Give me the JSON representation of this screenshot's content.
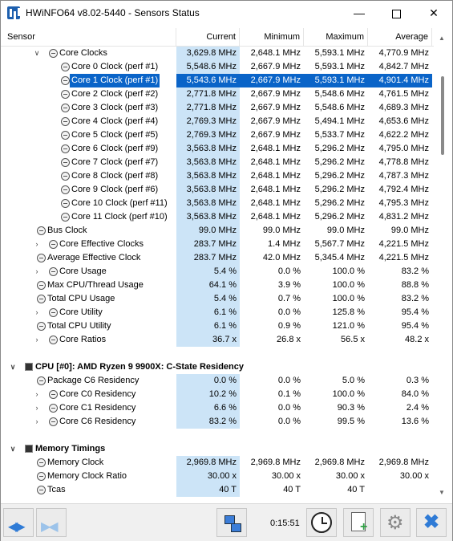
{
  "window": {
    "title": "HWiNFO64 v8.02-5440 - Sensors Status"
  },
  "columns": {
    "sensor": "Sensor",
    "current": "Current",
    "minimum": "Minimum",
    "maximum": "Maximum",
    "average": "Average"
  },
  "rows": [
    {
      "label": "Core Clocks",
      "cur": "3,629.8 MHz",
      "min": "2,648.1 MHz",
      "max": "5,593.1 MHz",
      "avg": "4,770.9 MHz",
      "indent": 2,
      "expander": "down",
      "icon": "clock"
    },
    {
      "label": "Core 0 Clock (perf #1)",
      "cur": "5,548.6 MHz",
      "min": "2,667.9 MHz",
      "max": "5,593.1 MHz",
      "avg": "4,842.7 MHz",
      "indent": 3,
      "icon": "clock"
    },
    {
      "label": "Core 1 Clock (perf #1)",
      "cur": "5,543.6 MHz",
      "min": "2,667.9 MHz",
      "max": "5,593.1 MHz",
      "avg": "4,901.4 MHz",
      "indent": 3,
      "icon": "clock",
      "selected": true
    },
    {
      "label": "Core 2 Clock (perf #2)",
      "cur": "2,771.8 MHz",
      "min": "2,667.9 MHz",
      "max": "5,548.6 MHz",
      "avg": "4,761.5 MHz",
      "indent": 3,
      "icon": "clock"
    },
    {
      "label": "Core 3 Clock (perf #3)",
      "cur": "2,771.8 MHz",
      "min": "2,667.9 MHz",
      "max": "5,548.6 MHz",
      "avg": "4,689.3 MHz",
      "indent": 3,
      "icon": "clock"
    },
    {
      "label": "Core 4 Clock (perf #4)",
      "cur": "2,769.3 MHz",
      "min": "2,667.9 MHz",
      "max": "5,494.1 MHz",
      "avg": "4,653.6 MHz",
      "indent": 3,
      "icon": "clock"
    },
    {
      "label": "Core 5 Clock (perf #5)",
      "cur": "2,769.3 MHz",
      "min": "2,667.9 MHz",
      "max": "5,533.7 MHz",
      "avg": "4,622.2 MHz",
      "indent": 3,
      "icon": "clock"
    },
    {
      "label": "Core 6 Clock (perf #9)",
      "cur": "3,563.8 MHz",
      "min": "2,648.1 MHz",
      "max": "5,296.2 MHz",
      "avg": "4,795.0 MHz",
      "indent": 3,
      "icon": "clock"
    },
    {
      "label": "Core 7 Clock (perf #7)",
      "cur": "3,563.8 MHz",
      "min": "2,648.1 MHz",
      "max": "5,296.2 MHz",
      "avg": "4,778.8 MHz",
      "indent": 3,
      "icon": "clock"
    },
    {
      "label": "Core 8 Clock (perf #8)",
      "cur": "3,563.8 MHz",
      "min": "2,648.1 MHz",
      "max": "5,296.2 MHz",
      "avg": "4,787.3 MHz",
      "indent": 3,
      "icon": "clock"
    },
    {
      "label": "Core 9 Clock (perf #6)",
      "cur": "3,563.8 MHz",
      "min": "2,648.1 MHz",
      "max": "5,296.2 MHz",
      "avg": "4,792.4 MHz",
      "indent": 3,
      "icon": "clock"
    },
    {
      "label": "Core 10 Clock (perf #11)",
      "cur": "3,563.8 MHz",
      "min": "2,648.1 MHz",
      "max": "5,296.2 MHz",
      "avg": "4,795.3 MHz",
      "indent": 3,
      "icon": "clock"
    },
    {
      "label": "Core 11 Clock (perf #10)",
      "cur": "3,563.8 MHz",
      "min": "2,648.1 MHz",
      "max": "5,296.2 MHz",
      "avg": "4,831.2 MHz",
      "indent": 3,
      "icon": "clock"
    },
    {
      "label": "Bus Clock",
      "cur": "99.0 MHz",
      "min": "99.0 MHz",
      "max": "99.0 MHz",
      "avg": "99.0 MHz",
      "indent": 1,
      "icon": "clock"
    },
    {
      "label": "Core Effective Clocks",
      "cur": "283.7 MHz",
      "min": "1.4 MHz",
      "max": "5,567.7 MHz",
      "avg": "4,221.5 MHz",
      "indent": 2,
      "expander": "right",
      "icon": "clock"
    },
    {
      "label": "Average Effective Clock",
      "cur": "283.7 MHz",
      "min": "42.0 MHz",
      "max": "5,345.4 MHz",
      "avg": "4,221.5 MHz",
      "indent": 1,
      "icon": "clock"
    },
    {
      "label": "Core Usage",
      "cur": "5.4 %",
      "min": "0.0 %",
      "max": "100.0 %",
      "avg": "83.2 %",
      "indent": 2,
      "expander": "right",
      "icon": "clock"
    },
    {
      "label": "Max CPU/Thread Usage",
      "cur": "64.1 %",
      "min": "3.9 %",
      "max": "100.0 %",
      "avg": "88.8 %",
      "indent": 1,
      "icon": "clock"
    },
    {
      "label": "Total CPU Usage",
      "cur": "5.4 %",
      "min": "0.7 %",
      "max": "100.0 %",
      "avg": "83.2 %",
      "indent": 1,
      "icon": "clock"
    },
    {
      "label": "Core Utility",
      "cur": "6.1 %",
      "min": "0.0 %",
      "max": "125.8 %",
      "avg": "95.4 %",
      "indent": 2,
      "expander": "right",
      "icon": "clock"
    },
    {
      "label": "Total CPU Utility",
      "cur": "6.1 %",
      "min": "0.9 %",
      "max": "121.0 %",
      "avg": "95.4 %",
      "indent": 1,
      "icon": "clock"
    },
    {
      "label": "Core Ratios",
      "cur": "36.7 x",
      "min": "26.8 x",
      "max": "56.5 x",
      "avg": "48.2 x",
      "indent": 2,
      "expander": "right",
      "icon": "clock"
    },
    {
      "blank": true
    },
    {
      "label": "CPU [#0]: AMD Ryzen 9 9900X: C-State Residency",
      "indent": 0,
      "expander": "down",
      "icon": "chip",
      "group": true
    },
    {
      "label": "Package C6 Residency",
      "cur": "0.0 %",
      "min": "0.0 %",
      "max": "5.0 %",
      "avg": "0.3 %",
      "indent": 1,
      "icon": "clock"
    },
    {
      "label": "Core C0 Residency",
      "cur": "10.2 %",
      "min": "0.1 %",
      "max": "100.0 %",
      "avg": "84.0 %",
      "indent": 2,
      "expander": "right",
      "icon": "clock"
    },
    {
      "label": "Core C1 Residency",
      "cur": "6.6 %",
      "min": "0.0 %",
      "max": "90.3 %",
      "avg": "2.4 %",
      "indent": 2,
      "expander": "right",
      "icon": "clock"
    },
    {
      "label": "Core C6 Residency",
      "cur": "83.2 %",
      "min": "0.0 %",
      "max": "99.5 %",
      "avg": "13.6 %",
      "indent": 2,
      "expander": "right",
      "icon": "clock"
    },
    {
      "blank": true
    },
    {
      "label": "Memory Timings",
      "indent": 0,
      "expander": "down",
      "icon": "chip",
      "group": true
    },
    {
      "label": "Memory Clock",
      "cur": "2,969.8 MHz",
      "min": "2,969.8 MHz",
      "max": "2,969.8 MHz",
      "avg": "2,969.8 MHz",
      "indent": 1,
      "icon": "clock"
    },
    {
      "label": "Memory Clock Ratio",
      "cur": "30.00 x",
      "min": "30.00 x",
      "max": "30.00 x",
      "avg": "30.00 x",
      "indent": 1,
      "icon": "clock"
    },
    {
      "label": "Tcas",
      "cur": "40 T",
      "min": "40 T",
      "max": "40 T",
      "avg": "",
      "indent": 1,
      "icon": "clock"
    }
  ],
  "toolbar": {
    "timer": "0:15:51"
  },
  "colors": {
    "selection": "#0a64c8",
    "current_bg": "#cce4f7",
    "accent": "#2f7bd6"
  }
}
